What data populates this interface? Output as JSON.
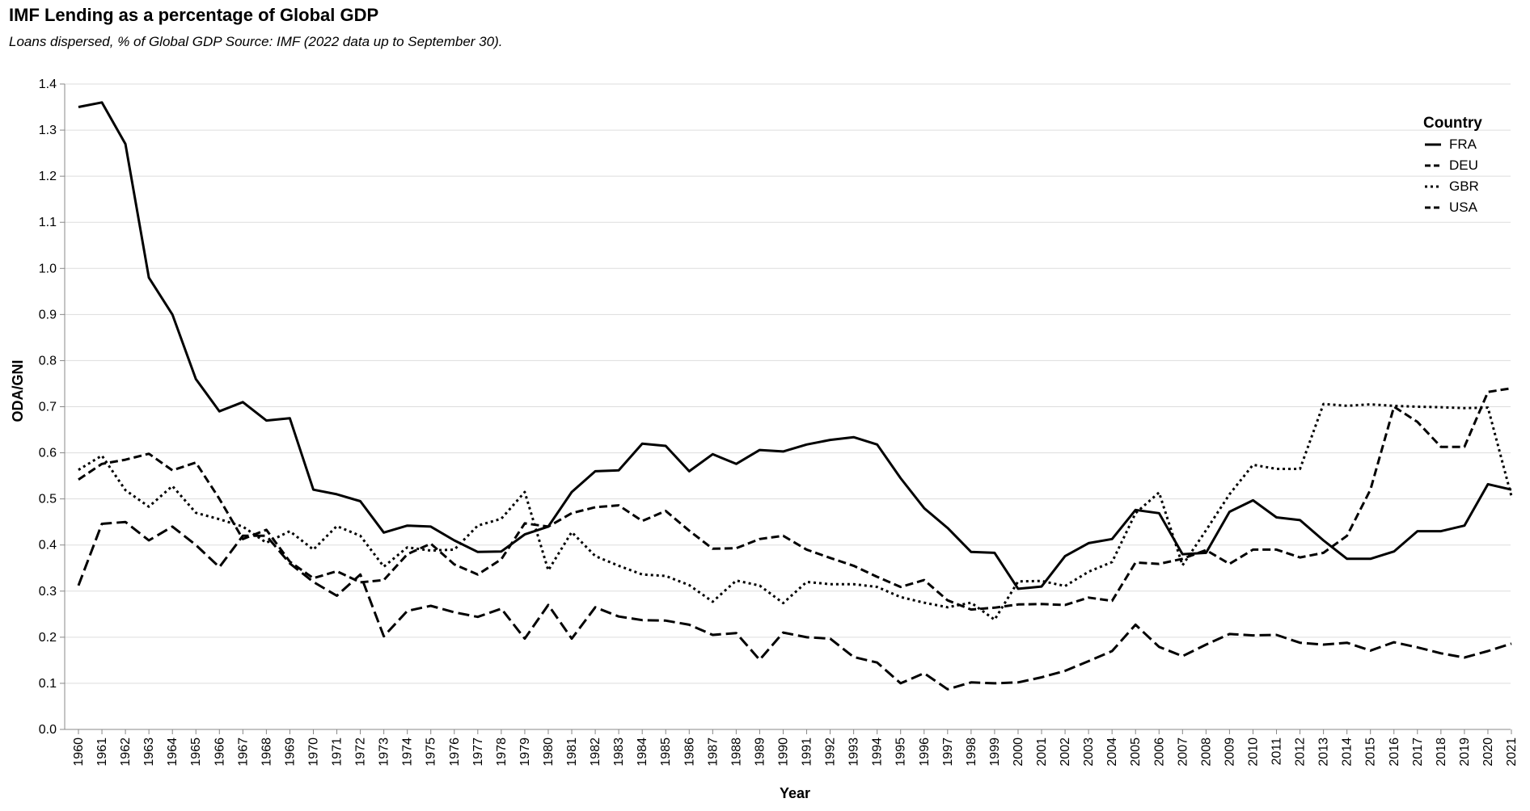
{
  "chart_data": {
    "type": "line",
    "title": "IMF Lending as a percentage of Global GDP",
    "subtitle": "Loans dispersed, % of Global GDP Source: IMF (2022 data up to September 30).",
    "xlabel": "Year",
    "ylabel": "ODA/GNI",
    "ylim": [
      0,
      1.4
    ],
    "yticks": [
      "0.0",
      "0.1",
      "0.2",
      "0.3",
      "0.4",
      "0.5",
      "0.6",
      "0.7",
      "0.8",
      "0.9",
      "1.0",
      "1.1",
      "1.2",
      "1.3",
      "1.4"
    ],
    "grid": true,
    "legend": {
      "title": "Country",
      "placement": "top-right"
    },
    "x": [
      1960,
      1961,
      1962,
      1963,
      1964,
      1965,
      1966,
      1967,
      1968,
      1969,
      1970,
      1971,
      1972,
      1973,
      1974,
      1975,
      1976,
      1977,
      1978,
      1979,
      1980,
      1981,
      1982,
      1983,
      1984,
      1985,
      1986,
      1987,
      1988,
      1989,
      1990,
      1991,
      1992,
      1993,
      1994,
      1995,
      1996,
      1997,
      1998,
      1999,
      2000,
      2001,
      2002,
      2003,
      2004,
      2005,
      2006,
      2007,
      2008,
      2009,
      2010,
      2011,
      2012,
      2013,
      2014,
      2015,
      2016,
      2017,
      2018,
      2019,
      2020,
      2021
    ],
    "series": [
      {
        "name": "FRA",
        "dash": "solid",
        "values": [
          1.35,
          1.36,
          1.27,
          0.98,
          0.9,
          0.76,
          0.69,
          0.71,
          0.67,
          0.675,
          0.52,
          0.51,
          0.495,
          0.427,
          0.442,
          0.44,
          0.41,
          0.385,
          0.386,
          0.423,
          0.44,
          0.515,
          0.56,
          0.562,
          0.62,
          0.615,
          0.56,
          0.597,
          0.576,
          0.606,
          0.603,
          0.618,
          0.628,
          0.634,
          0.618,
          0.545,
          0.48,
          0.437,
          0.385,
          0.383,
          0.305,
          0.31,
          0.376,
          0.404,
          0.413,
          0.476,
          0.469,
          0.38,
          0.383,
          0.472,
          0.497,
          0.46,
          0.454,
          0.41,
          0.37,
          0.37,
          0.386,
          0.43,
          0.43,
          0.442,
          0.532,
          0.52
        ]
      },
      {
        "name": "DEU",
        "dash": "dashed",
        "values": [
          0.542,
          0.576,
          0.585,
          0.598,
          0.562,
          0.579,
          0.5,
          0.413,
          0.433,
          0.364,
          0.328,
          0.343,
          0.319,
          0.324,
          0.38,
          0.403,
          0.358,
          0.336,
          0.369,
          0.447,
          0.44,
          0.469,
          0.482,
          0.486,
          0.452,
          0.474,
          0.431,
          0.392,
          0.393,
          0.413,
          0.42,
          0.39,
          0.372,
          0.355,
          0.331,
          0.309,
          0.324,
          0.28,
          0.26,
          0.264,
          0.271,
          0.272,
          0.27,
          0.286,
          0.279,
          0.362,
          0.359,
          0.37,
          0.389,
          0.359,
          0.39,
          0.39,
          0.373,
          0.383,
          0.42,
          0.52,
          0.7,
          0.667,
          0.613,
          0.613,
          0.732,
          0.74
        ]
      },
      {
        "name": "GBR",
        "dash": "dotted",
        "values": [
          0.563,
          0.594,
          0.519,
          0.483,
          0.528,
          0.47,
          0.456,
          0.44,
          0.405,
          0.43,
          0.39,
          0.441,
          0.42,
          0.353,
          0.395,
          0.388,
          0.39,
          0.442,
          0.457,
          0.515,
          0.345,
          0.428,
          0.376,
          0.355,
          0.336,
          0.333,
          0.313,
          0.277,
          0.323,
          0.312,
          0.274,
          0.32,
          0.315,
          0.315,
          0.309,
          0.287,
          0.275,
          0.265,
          0.275,
          0.238,
          0.321,
          0.322,
          0.311,
          0.342,
          0.363,
          0.469,
          0.514,
          0.356,
          0.432,
          0.51,
          0.574,
          0.565,
          0.565,
          0.706,
          0.702,
          0.705,
          0.702,
          0.7,
          0.699,
          0.697,
          0.698,
          0.506
        ]
      },
      {
        "name": "USA",
        "dash": "longdash",
        "values": [
          0.312,
          0.446,
          0.45,
          0.41,
          0.44,
          0.4,
          0.352,
          0.42,
          0.42,
          0.36,
          0.32,
          0.29,
          0.336,
          0.202,
          0.257,
          0.268,
          0.254,
          0.244,
          0.262,
          0.197,
          0.27,
          0.197,
          0.265,
          0.245,
          0.237,
          0.236,
          0.227,
          0.205,
          0.209,
          0.151,
          0.21,
          0.2,
          0.197,
          0.157,
          0.145,
          0.1,
          0.122,
          0.087,
          0.102,
          0.1,
          0.102,
          0.113,
          0.127,
          0.148,
          0.17,
          0.227,
          0.179,
          0.159,
          0.184,
          0.207,
          0.204,
          0.205,
          0.188,
          0.184,
          0.188,
          0.171,
          0.189,
          0.178,
          0.165,
          0.156,
          0.17,
          0.186
        ]
      }
    ]
  }
}
